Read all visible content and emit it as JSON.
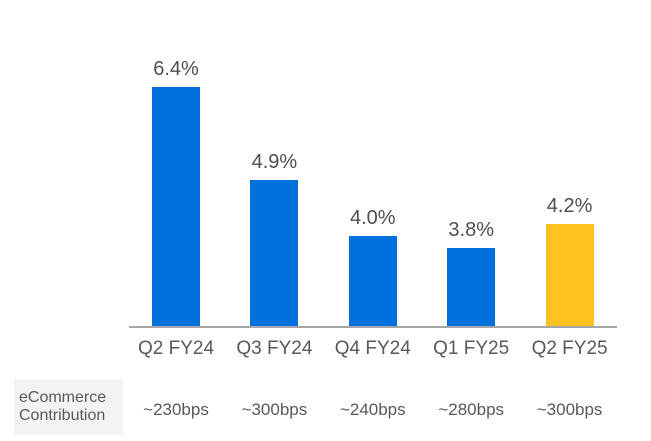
{
  "chart_data": {
    "type": "bar",
    "title": "",
    "xlabel": "",
    "ylabel": "",
    "categories": [
      "Q2 FY24",
      "Q3 FY24",
      "Q4 FY24",
      "Q1 FY25",
      "Q2 FY25"
    ],
    "values": [
      6.4,
      4.9,
      4.0,
      3.8,
      4.2
    ],
    "value_labels": [
      "6.4%",
      "4.9%",
      "4.0%",
      "3.8%",
      "4.2%"
    ],
    "bar_colors": [
      "#0071DC",
      "#0071DC",
      "#0071DC",
      "#0071DC",
      "#FFC220"
    ],
    "ylim": [
      2.55,
      6.4
    ],
    "grid": false,
    "legend": false,
    "axis_line_color": "#A6A6A6",
    "annotation_row": {
      "label": "eCommerce Contribution",
      "values": [
        "~230bps",
        "~300bps",
        "~240bps",
        "~280bps",
        "~300bps"
      ]
    }
  },
  "colors": {
    "bar_blue": "#0071DC",
    "bar_yellow": "#FFC220",
    "axis_line": "#A6A6A6",
    "value_label_text": "#4F4F4F",
    "axis_label_text": "#595959",
    "bps_text": "#595959",
    "contribution_box_bg": "#F3F3F3",
    "contribution_text": "#595959"
  }
}
